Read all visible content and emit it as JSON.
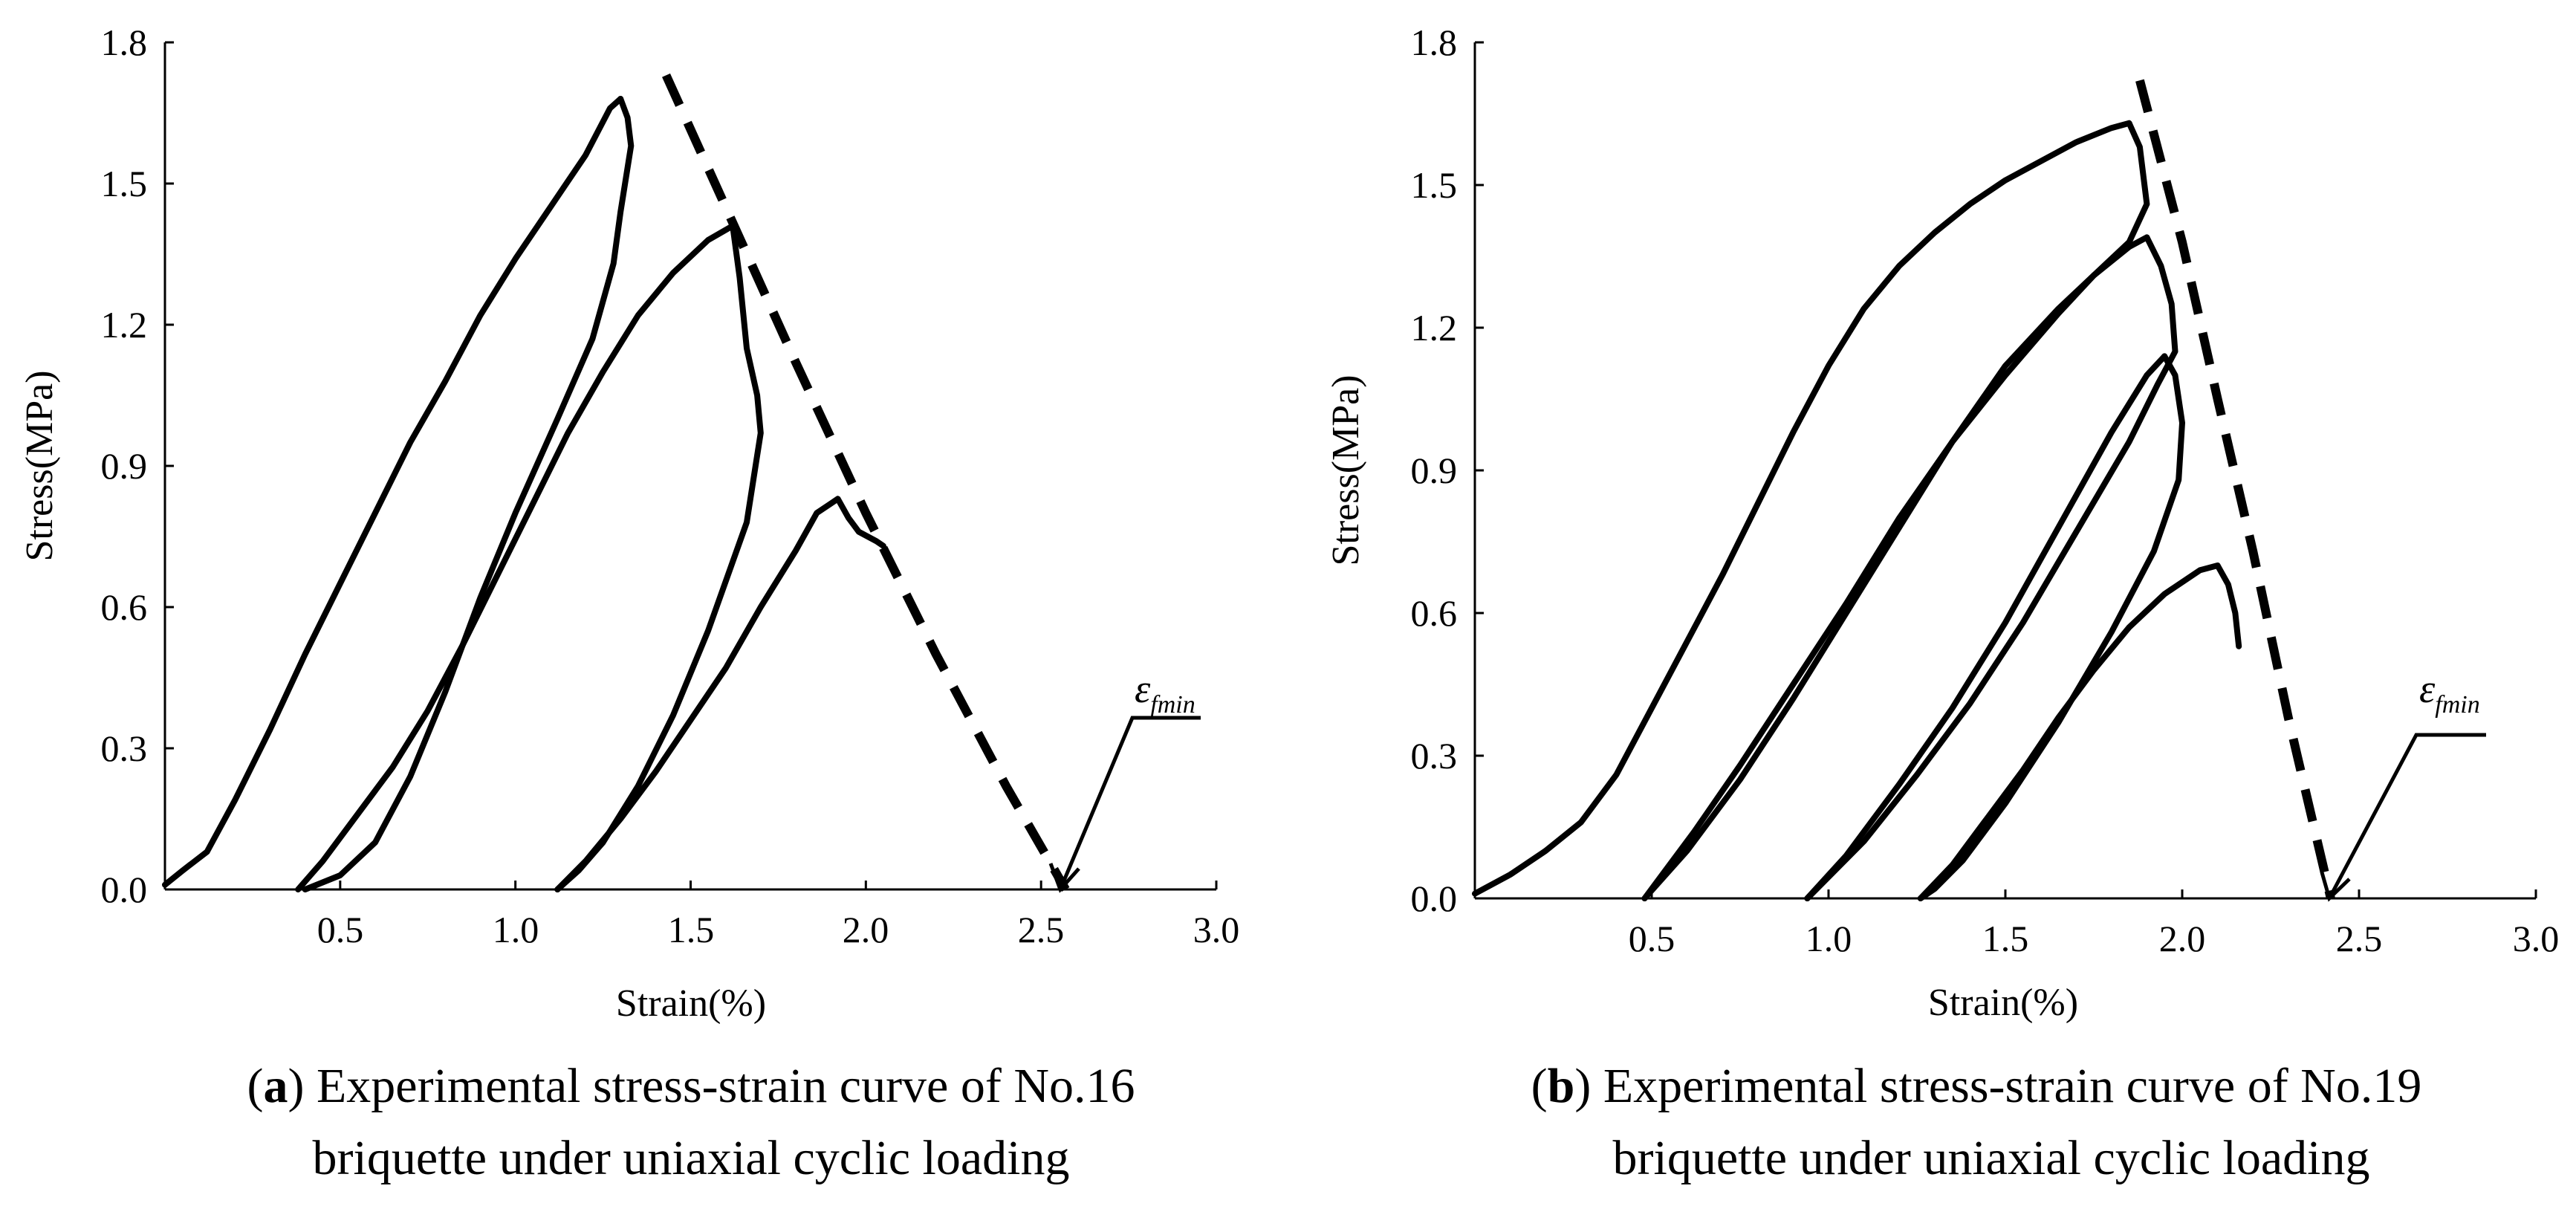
{
  "chart_data": [
    {
      "type": "line",
      "panel": "a",
      "caption_letter": "a",
      "caption_line1": ") Experimental stress-strain curve of No.16",
      "caption_line2": "briquette under uniaxial cyclic loading",
      "xlabel": "Strain(%)",
      "ylabel": "Stress(MPa)",
      "xlim": [
        0,
        3.0
      ],
      "ylim": [
        0,
        1.8
      ],
      "x_ticks": [
        "0.5",
        "1.0",
        "1.5",
        "2.0",
        "2.5",
        "3.0"
      ],
      "y_ticks": [
        "0.0",
        "0.3",
        "0.6",
        "0.9",
        "1.2",
        "1.5",
        "1.8"
      ],
      "annotation": {
        "symbol": "ε",
        "subscript": "fmin",
        "x": 2.57,
        "y": 0.0
      },
      "series": [
        {
          "name": "cycle-1-loading",
          "style": "solid",
          "x": [
            0.0,
            0.05,
            0.12,
            0.2,
            0.3,
            0.4,
            0.5,
            0.6,
            0.7,
            0.8,
            0.9,
            1.0,
            1.1,
            1.2,
            1.27,
            1.3
          ],
          "y": [
            0.01,
            0.04,
            0.08,
            0.19,
            0.34,
            0.5,
            0.65,
            0.8,
            0.95,
            1.08,
            1.22,
            1.34,
            1.45,
            1.56,
            1.66,
            1.68
          ]
        },
        {
          "name": "cycle-1-unloading",
          "style": "solid",
          "x": [
            1.3,
            1.32,
            1.33,
            1.3,
            1.28,
            1.22,
            1.12,
            1.0,
            0.9,
            0.8,
            0.7,
            0.6,
            0.5,
            0.4
          ],
          "y": [
            1.68,
            1.64,
            1.58,
            1.44,
            1.33,
            1.17,
            1.0,
            0.8,
            0.62,
            0.42,
            0.24,
            0.1,
            0.03,
            0.0
          ]
        },
        {
          "name": "cycle-2-loading",
          "style": "solid",
          "x": [
            0.38,
            0.45,
            0.55,
            0.65,
            0.75,
            0.85,
            0.95,
            1.05,
            1.15,
            1.25,
            1.35,
            1.45,
            1.55,
            1.62
          ],
          "y": [
            0.0,
            0.06,
            0.16,
            0.26,
            0.38,
            0.52,
            0.67,
            0.82,
            0.97,
            1.1,
            1.22,
            1.31,
            1.38,
            1.41
          ]
        },
        {
          "name": "cycle-2-unloading",
          "style": "solid",
          "x": [
            1.62,
            1.64,
            1.66,
            1.69,
            1.7,
            1.66,
            1.55,
            1.45,
            1.35,
            1.25,
            1.18,
            1.12
          ],
          "y": [
            1.41,
            1.3,
            1.15,
            1.05,
            0.97,
            0.78,
            0.55,
            0.37,
            0.22,
            0.1,
            0.04,
            0.0
          ]
        },
        {
          "name": "cycle-3-loading",
          "style": "solid",
          "x": [
            1.12,
            1.2,
            1.3,
            1.4,
            1.5,
            1.6,
            1.7,
            1.8,
            1.86,
            1.9,
            1.92,
            1.95,
            1.98,
            2.03,
            2.05
          ],
          "y": [
            0.0,
            0.06,
            0.15,
            0.25,
            0.36,
            0.47,
            0.6,
            0.72,
            0.8,
            0.82,
            0.83,
            0.79,
            0.76,
            0.74,
            0.73
          ]
        },
        {
          "name": "failure-envelope",
          "style": "dashed",
          "x": [
            1.43,
            1.6,
            1.8,
            2.0,
            2.2,
            2.4,
            2.57
          ],
          "y": [
            1.73,
            1.45,
            1.12,
            0.8,
            0.5,
            0.22,
            0.0
          ]
        }
      ]
    },
    {
      "type": "line",
      "panel": "b",
      "caption_letter": "b",
      "caption_line1": ") Experimental stress-strain curve of No.19",
      "caption_line2": "briquette under uniaxial cyclic loading",
      "xlabel": "Strain(%)",
      "ylabel": "Stress(MPa)",
      "xlim": [
        0,
        3.0
      ],
      "ylim": [
        0,
        1.8
      ],
      "x_ticks": [
        "0.5",
        "1.0",
        "1.5",
        "2.0",
        "2.5",
        "3.0"
      ],
      "y_ticks": [
        "0.0",
        "0.3",
        "0.6",
        "0.9",
        "1.2",
        "1.5",
        "1.8"
      ],
      "annotation": {
        "symbol": "ε",
        "subscript": "fmin",
        "x": 2.42,
        "y": 0.0
      },
      "series": [
        {
          "name": "cycle-1-loading",
          "style": "solid",
          "x": [
            0.0,
            0.1,
            0.2,
            0.3,
            0.4,
            0.5,
            0.6,
            0.7,
            0.8,
            0.9,
            1.0,
            1.1,
            1.2,
            1.3,
            1.4,
            1.5,
            1.6,
            1.7,
            1.8,
            1.85
          ],
          "y": [
            0.01,
            0.05,
            0.1,
            0.16,
            0.26,
            0.4,
            0.54,
            0.68,
            0.83,
            0.98,
            1.12,
            1.24,
            1.33,
            1.4,
            1.46,
            1.51,
            1.55,
            1.59,
            1.62,
            1.63
          ]
        },
        {
          "name": "cycle-1-unloading",
          "style": "solid",
          "x": [
            1.85,
            1.88,
            1.9,
            1.85,
            1.75,
            1.65,
            1.5,
            1.35,
            1.2,
            1.05,
            0.9,
            0.75,
            0.62,
            0.52,
            0.48
          ],
          "y": [
            1.63,
            1.58,
            1.46,
            1.38,
            1.31,
            1.23,
            1.1,
            0.96,
            0.8,
            0.62,
            0.45,
            0.28,
            0.14,
            0.04,
            0.0
          ]
        },
        {
          "name": "cycle-2-loading",
          "style": "solid",
          "x": [
            0.48,
            0.6,
            0.75,
            0.9,
            1.05,
            1.2,
            1.35,
            1.5,
            1.65,
            1.75,
            1.85,
            1.9
          ],
          "y": [
            0.0,
            0.1,
            0.25,
            0.42,
            0.6,
            0.78,
            0.96,
            1.12,
            1.24,
            1.31,
            1.37,
            1.39
          ]
        },
        {
          "name": "cycle-2-unloading",
          "style": "solid",
          "x": [
            1.9,
            1.94,
            1.97,
            1.98,
            1.93,
            1.85,
            1.7,
            1.55,
            1.4,
            1.25,
            1.1,
            0.98,
            0.94
          ],
          "y": [
            1.39,
            1.33,
            1.25,
            1.15,
            1.08,
            0.96,
            0.77,
            0.58,
            0.41,
            0.26,
            0.12,
            0.03,
            0.0
          ]
        },
        {
          "name": "cycle-3-loading",
          "style": "solid",
          "x": [
            0.94,
            1.05,
            1.2,
            1.35,
            1.5,
            1.65,
            1.8,
            1.9,
            1.95
          ],
          "y": [
            0.0,
            0.09,
            0.24,
            0.4,
            0.58,
            0.78,
            0.98,
            1.1,
            1.14
          ]
        },
        {
          "name": "cycle-3-unloading",
          "style": "solid",
          "x": [
            1.95,
            1.98,
            2.0,
            1.99,
            1.92,
            1.8,
            1.65,
            1.5,
            1.38,
            1.3,
            1.26
          ],
          "y": [
            1.14,
            1.1,
            1.0,
            0.88,
            0.73,
            0.56,
            0.37,
            0.2,
            0.08,
            0.02,
            0.0
          ]
        },
        {
          "name": "cycle-4-loading",
          "style": "solid",
          "x": [
            1.26,
            1.35,
            1.45,
            1.55,
            1.65,
            1.75,
            1.85,
            1.95,
            2.05,
            2.1,
            2.13,
            2.15,
            2.16
          ],
          "y": [
            0.0,
            0.07,
            0.17,
            0.27,
            0.38,
            0.48,
            0.57,
            0.64,
            0.69,
            0.7,
            0.66,
            0.6,
            0.53
          ]
        },
        {
          "name": "failure-envelope",
          "style": "dashed",
          "x": [
            1.88,
            2.0,
            2.1,
            2.2,
            2.3,
            2.42
          ],
          "y": [
            1.72,
            1.38,
            1.05,
            0.73,
            0.38,
            0.0
          ]
        }
      ]
    }
  ]
}
